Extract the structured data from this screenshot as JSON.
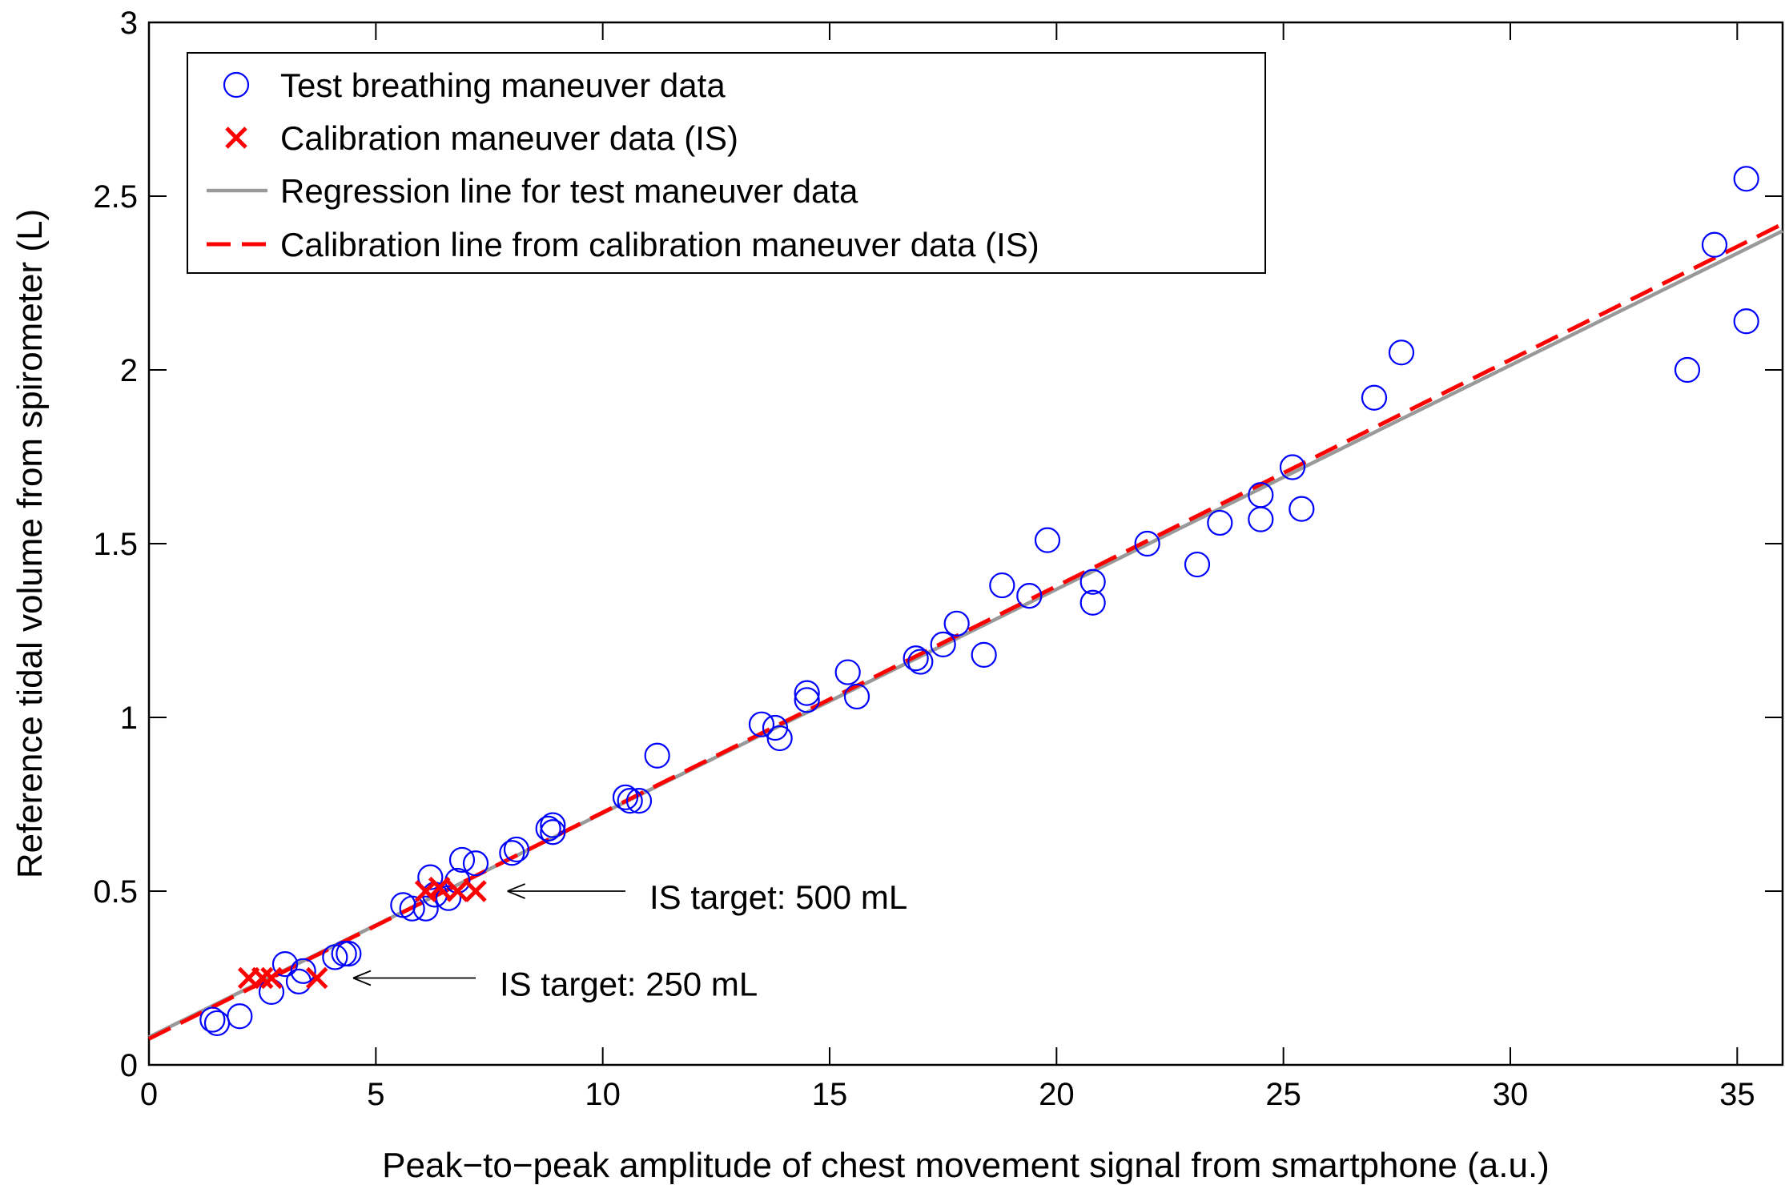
{
  "chart_data": {
    "type": "scatter",
    "xlabel": "Peak−to−peak amplitude of chest movement signal from smartphone (a.u.)",
    "ylabel": "Reference tidal volume from spirometer (L)",
    "xlim": [
      0,
      36
    ],
    "ylim": [
      0,
      3
    ],
    "xticks": [
      0,
      5,
      10,
      15,
      20,
      25,
      30,
      35
    ],
    "yticks": [
      0,
      0.5,
      1,
      1.5,
      2,
      2.5,
      3
    ],
    "xtick_labels": [
      "0",
      "5",
      "10",
      "15",
      "20",
      "25",
      "30",
      "35"
    ],
    "ytick_labels": [
      "0",
      "0.5",
      "1",
      "1.5",
      "2",
      "2.5",
      "3"
    ],
    "grid": false,
    "legend_position": "top-left",
    "series": [
      {
        "name": "Test breathing maneuver data",
        "kind": "scatter",
        "marker": "circle",
        "color": "#0000ff",
        "points": [
          [
            1.4,
            0.13
          ],
          [
            1.5,
            0.12
          ],
          [
            2.0,
            0.14
          ],
          [
            2.7,
            0.21
          ],
          [
            3.0,
            0.29
          ],
          [
            3.3,
            0.24
          ],
          [
            3.4,
            0.27
          ],
          [
            4.1,
            0.31
          ],
          [
            4.3,
            0.32
          ],
          [
            4.4,
            0.32
          ],
          [
            5.6,
            0.46
          ],
          [
            5.8,
            0.45
          ],
          [
            6.1,
            0.45
          ],
          [
            6.2,
            0.54
          ],
          [
            6.3,
            0.49
          ],
          [
            6.6,
            0.48
          ],
          [
            6.8,
            0.53
          ],
          [
            6.9,
            0.59
          ],
          [
            7.2,
            0.58
          ],
          [
            8.0,
            0.61
          ],
          [
            8.1,
            0.62
          ],
          [
            8.8,
            0.68
          ],
          [
            8.9,
            0.67
          ],
          [
            8.9,
            0.69
          ],
          [
            10.5,
            0.77
          ],
          [
            10.6,
            0.76
          ],
          [
            10.8,
            0.76
          ],
          [
            11.2,
            0.89
          ],
          [
            13.5,
            0.98
          ],
          [
            13.8,
            0.97
          ],
          [
            13.9,
            0.94
          ],
          [
            14.5,
            1.05
          ],
          [
            14.5,
            1.07
          ],
          [
            15.4,
            1.13
          ],
          [
            15.6,
            1.06
          ],
          [
            16.9,
            1.17
          ],
          [
            17.0,
            1.16
          ],
          [
            17.5,
            1.21
          ],
          [
            17.8,
            1.27
          ],
          [
            18.4,
            1.18
          ],
          [
            18.8,
            1.38
          ],
          [
            19.4,
            1.35
          ],
          [
            19.8,
            1.51
          ],
          [
            20.8,
            1.33
          ],
          [
            20.8,
            1.39
          ],
          [
            22.0,
            1.5
          ],
          [
            23.1,
            1.44
          ],
          [
            23.6,
            1.56
          ],
          [
            24.5,
            1.57
          ],
          [
            24.5,
            1.64
          ],
          [
            25.2,
            1.72
          ],
          [
            25.4,
            1.6
          ],
          [
            27.0,
            1.92
          ],
          [
            27.6,
            2.05
          ],
          [
            33.9,
            2.0
          ],
          [
            34.5,
            2.36
          ],
          [
            35.2,
            2.55
          ],
          [
            35.2,
            2.14
          ]
        ]
      },
      {
        "name": "Calibration maneuver data (IS)",
        "kind": "scatter",
        "marker": "x",
        "color": "#ff0000",
        "points": [
          [
            2.2,
            0.25
          ],
          [
            2.5,
            0.25
          ],
          [
            2.7,
            0.25
          ],
          [
            3.7,
            0.25
          ],
          [
            6.1,
            0.5
          ],
          [
            6.4,
            0.51
          ],
          [
            6.8,
            0.5
          ],
          [
            7.2,
            0.5
          ]
        ]
      },
      {
        "name": "Regression line for test maneuver data",
        "kind": "line",
        "style": "solid",
        "color": "#999999",
        "points": [
          [
            0,
            0.08
          ],
          [
            36,
            2.4
          ]
        ]
      },
      {
        "name": "Calibration line from calibration maneuver data (IS)",
        "kind": "line",
        "style": "dashed",
        "color": "#ff0000",
        "points": [
          [
            0,
            0.075
          ],
          [
            36,
            2.42
          ]
        ]
      }
    ],
    "annotations": [
      {
        "text": "IS target: 500 mL",
        "arrow_to": [
          7.9,
          0.5
        ],
        "arrow_from": [
          10.5,
          0.5
        ]
      },
      {
        "text": "IS target: 250 mL",
        "arrow_to": [
          4.5,
          0.25
        ],
        "arrow_from": [
          7.2,
          0.25
        ]
      }
    ]
  }
}
